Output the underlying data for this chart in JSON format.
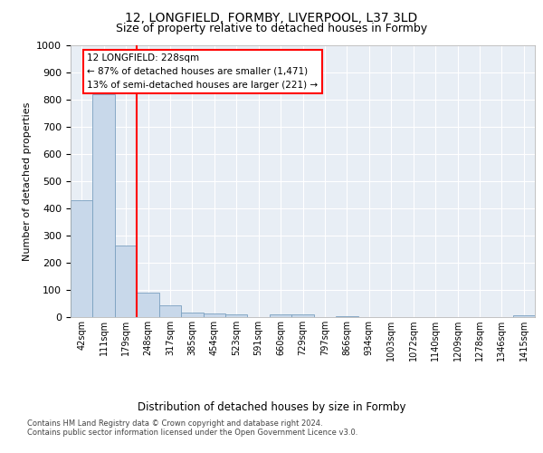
{
  "title_line1": "12, LONGFIELD, FORMBY, LIVERPOOL, L37 3LD",
  "title_line2": "Size of property relative to detached houses in Formby",
  "xlabel": "Distribution of detached houses by size in Formby",
  "ylabel": "Number of detached properties",
  "categories": [
    "42sqm",
    "111sqm",
    "179sqm",
    "248sqm",
    "317sqm",
    "385sqm",
    "454sqm",
    "523sqm",
    "591sqm",
    "660sqm",
    "729sqm",
    "797sqm",
    "866sqm",
    "934sqm",
    "1003sqm",
    "1072sqm",
    "1140sqm",
    "1209sqm",
    "1278sqm",
    "1346sqm",
    "1415sqm"
  ],
  "values": [
    430,
    820,
    265,
    90,
    42,
    18,
    15,
    10,
    0,
    10,
    10,
    0,
    5,
    0,
    0,
    0,
    0,
    0,
    0,
    0,
    8
  ],
  "bar_color": "#c8d8ea",
  "bar_edge_color": "#7aa0c0",
  "red_line_x": 2.5,
  "annotation_text": "12 LONGFIELD: 228sqm\n← 87% of detached houses are smaller (1,471)\n13% of semi-detached houses are larger (221) →",
  "ylim": [
    0,
    1000
  ],
  "yticks": [
    0,
    100,
    200,
    300,
    400,
    500,
    600,
    700,
    800,
    900,
    1000
  ],
  "footer_line1": "Contains HM Land Registry data © Crown copyright and database right 2024.",
  "footer_line2": "Contains public sector information licensed under the Open Government Licence v3.0.",
  "plot_bg_color": "#e8eef5"
}
